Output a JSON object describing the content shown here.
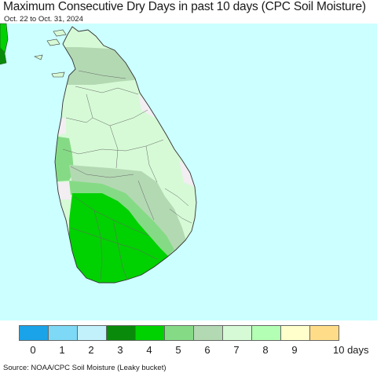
{
  "title": "Maximum Consecutive Dry Days in past 10 days (CPC Soil Moisture)",
  "subtitle": "Oct. 22 to Oct. 31, 2024",
  "source": "Source: NOAA/CPC Soil Moisture (Leaky bucket)",
  "colors": {
    "ocean": "#ccffff",
    "land_white": "#f2eef2",
    "border": "#555555"
  },
  "legend": {
    "units": "10 days",
    "bins": [
      {
        "label": "0",
        "color": "#1aa3e8"
      },
      {
        "label": "1",
        "color": "#7dd9f5"
      },
      {
        "label": "2",
        "color": "#c2f0fb"
      },
      {
        "label": "3",
        "color": "#0a8a0a"
      },
      {
        "label": "4",
        "color": "#00d100"
      },
      {
        "label": "5",
        "color": "#85db85"
      },
      {
        "label": "6",
        "color": "#b3d9b3"
      },
      {
        "label": "7",
        "color": "#d6fad6"
      },
      {
        "label": "8",
        "color": "#b3ffb3"
      },
      {
        "label": "9",
        "color": "#ffffcc"
      },
      {
        "label": "",
        "color": "#ffdd88"
      }
    ]
  },
  "map_regions": [
    {
      "name": "north-jaffna",
      "value_bin": 6
    },
    {
      "name": "north-central",
      "value_bin": 7
    },
    {
      "name": "east-coast",
      "value_bin": 7
    },
    {
      "name": "west-strip",
      "value_bin": 5
    },
    {
      "name": "central-band",
      "value_bin": 6
    },
    {
      "name": "uva-band",
      "value_bin": 5
    },
    {
      "name": "southwest",
      "value_bin": 4
    },
    {
      "name": "mainland-corner",
      "value_bin": 4
    }
  ]
}
